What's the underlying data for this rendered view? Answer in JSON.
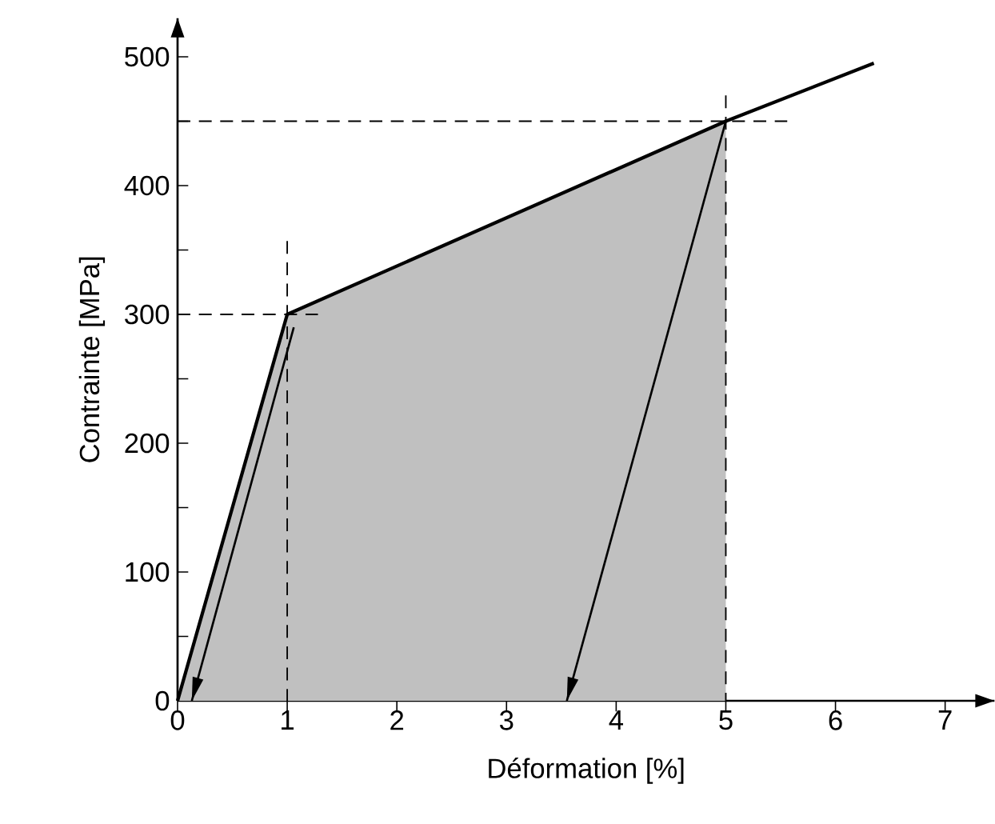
{
  "chart_data": {
    "type": "line",
    "xlabel": "Déformation [%]",
    "ylabel": "Contrainte [MPa]",
    "xlim": [
      0,
      7.45
    ],
    "ylim": [
      0,
      530
    ],
    "xticks": [
      0,
      1,
      2,
      3,
      4,
      5,
      6,
      7
    ],
    "yticks": [
      0,
      {
        "value": 50,
        "label": null
      },
      100,
      {
        "value": 150,
        "label": null
      },
      200,
      {
        "value": 250,
        "label": null
      },
      300,
      {
        "value": 350,
        "label": null
      },
      400,
      {
        "value": 450,
        "label": null
      },
      500
    ],
    "grid": false,
    "marker": "none",
    "series": [
      {
        "type": "area",
        "color": "#c0c0c0",
        "x": [
          0,
          1,
          5
        ],
        "values": [
          0,
          300,
          450
        ]
      },
      {
        "color": "#000000",
        "line_style": "solid",
        "x": [
          0,
          1,
          5,
          6.35
        ],
        "values": [
          0,
          300,
          450,
          495
        ]
      },
      {
        "color": "#000000",
        "line_style": "solid",
        "x": [
          1.06,
          0.13
        ],
        "values": [
          290,
          0
        ]
      },
      {
        "color": "#000000",
        "line_style": "solid",
        "x": [
          5,
          3.55
        ],
        "values": [
          450,
          0
        ]
      },
      {
        "color": "#000000",
        "line_style": "dashed",
        "x": [
          0,
          1.28
        ],
        "values": [
          300,
          300
        ]
      },
      {
        "color": "#000000",
        "line_style": "dashed",
        "x": [
          1,
          1
        ],
        "values": [
          357,
          0
        ]
      },
      {
        "color": "#000000",
        "line_style": "dashed",
        "x": [
          0,
          5.56
        ],
        "values": [
          450,
          450
        ]
      },
      {
        "color": "#000000",
        "line_style": "dashed",
        "x": [
          5,
          5
        ],
        "values": [
          470,
          0
        ]
      }
    ]
  }
}
